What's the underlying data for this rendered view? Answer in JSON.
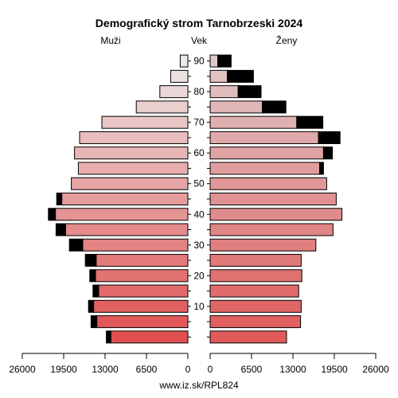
{
  "chart_data": {
    "type": "bar",
    "title": "Demografický strom Tarnobrzeski 2024",
    "left_label": "Muži",
    "center_label": "Vek",
    "right_label": "Ženy",
    "source": "www.iz.sk/RPL824",
    "age_groups": [
      "0-4",
      "5-9",
      "10-14",
      "15-19",
      "20-24",
      "25-29",
      "30-34",
      "35-39",
      "40-44",
      "45-49",
      "50-54",
      "55-59",
      "60-64",
      "65-69",
      "70-74",
      "75-79",
      "80-84",
      "85-89",
      "90+"
    ],
    "age_tick_labels": [
      "10",
      "20",
      "30",
      "40",
      "50",
      "60",
      "70",
      "80",
      "90"
    ],
    "age_tick_values": [
      10,
      20,
      30,
      40,
      50,
      60,
      70,
      80,
      90
    ],
    "x_ticks_left": [
      "26000",
      "19500",
      "13000",
      "6500",
      "0"
    ],
    "x_ticks_right": [
      "0",
      "6500",
      "13000",
      "19500",
      "26000"
    ],
    "xlim": [
      0,
      26000
    ],
    "series": [
      {
        "name": "Muži",
        "values": [
          12100,
          14300,
          14800,
          14000,
          14500,
          14400,
          16500,
          19200,
          20800,
          19800,
          18300,
          17200,
          17800,
          17000,
          13500,
          8100,
          4400,
          2700,
          1200
        ],
        "excess": [
          700,
          900,
          800,
          900,
          900,
          1700,
          2100,
          1500,
          1100,
          800,
          0,
          0,
          0,
          0,
          0,
          0,
          0,
          0,
          0
        ]
      },
      {
        "name": "Ženy",
        "values": [
          12000,
          14200,
          14300,
          13900,
          14400,
          14300,
          16600,
          19300,
          20700,
          19800,
          18300,
          17200,
          17800,
          17000,
          13600,
          8200,
          4400,
          2700,
          1200
        ],
        "excess": [
          0,
          0,
          0,
          0,
          0,
          0,
          0,
          0,
          0,
          0,
          0,
          600,
          1400,
          3400,
          4100,
          3700,
          3600,
          4100,
          2100
        ]
      }
    ],
    "colors": {
      "male_young": "#e05050",
      "male_old": "#ece8e8",
      "female_young": "#e05a5a",
      "female_old": "#e0c8c8",
      "excess": "#000000",
      "axis": "#000000"
    }
  }
}
